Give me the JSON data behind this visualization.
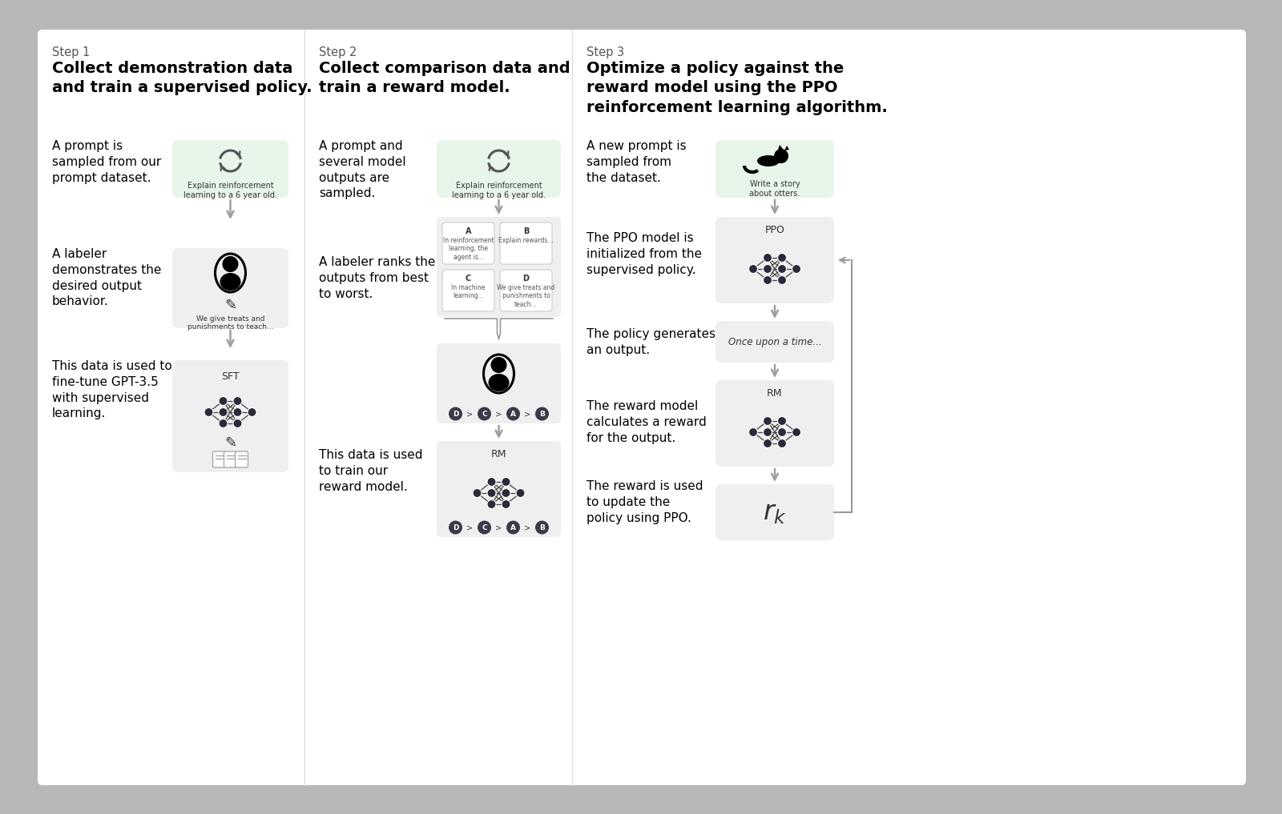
{
  "bg_outer": "#b8b8b8",
  "bg_inner": "#ffffff",
  "step1_label": "Step 1",
  "step1_title": "Collect demonstration data\nand train a supervised policy.",
  "step2_label": "Step 2",
  "step2_title": "Collect comparison data and\ntrain a reward model.",
  "step3_label": "Step 3",
  "step3_title": "Optimize a policy against the\nreward model using the PPO\nreinforcement learning algorithm.",
  "col1_texts": [
    "A prompt is\nsampled from our\nprompt dataset.",
    "A labeler\ndemonstrates the\ndesired output\nbehavior.",
    "This data is used to\nfine-tune GPT-3.5\nwith supervised\nlearning."
  ],
  "col1_box1_text": "Explain reinforcement\nlearning to a 6 year old.",
  "col1_box2_text": "We give treats and\npunishments to teach...",
  "col1_box3_label": "SFT",
  "col2_texts": [
    "A prompt and\nseveral model\noutputs are\nsampled.",
    "A labeler ranks the\noutputs from best\nto worst.",
    "This data is used\nto train our\nreward model."
  ],
  "col2_box1_text": "Explain reinforcement\nlearning to a 6 year old.",
  "col2_box2_labels": [
    "A",
    "B",
    "C",
    "D"
  ],
  "col2_box2_subtexts": [
    "In reinforcement\nlearning, the\nagent is...",
    "Explain rewards...",
    "In machine\nlearning...",
    "We give treats and\npunishments to\nteach..."
  ],
  "col2_ranking": [
    "D",
    ">",
    "C",
    ">",
    "A",
    ">",
    "B"
  ],
  "col2_box3_label": "RM",
  "col3_texts": [
    "A new prompt is\nsampled from\nthe dataset.",
    "The PPO model is\ninitialized from the\nsupervised policy.",
    "The policy generates\nan output.",
    "The reward model\ncalculates a reward\nfor the output.",
    "The reward is used\nto update the\npolicy using PPO."
  ],
  "col3_box1_text": "Write a story\nabout otters.",
  "col3_box2_label": "PPO",
  "col3_box3_text": "Once upon a time...",
  "col3_box4_label": "RM",
  "color_green_box": "#e8f5e9",
  "color_gray_box": "#efefef",
  "color_arrow": "#9e9e9e",
  "color_divider": "#dddddd",
  "color_node": "#2a2a3a",
  "color_ranking_pill": "#3a3a4a"
}
